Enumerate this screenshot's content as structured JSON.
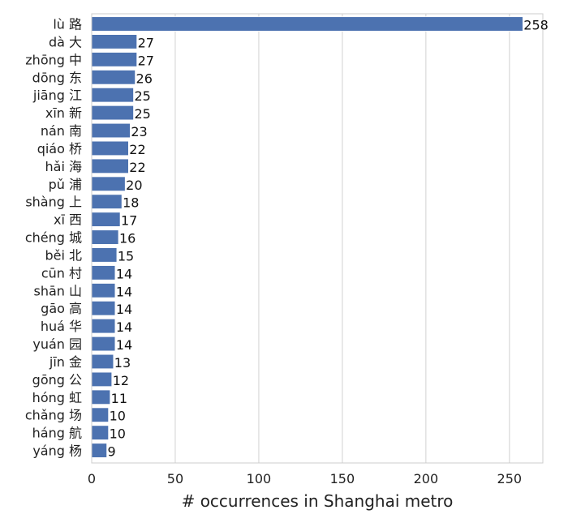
{
  "chart_data": {
    "type": "bar",
    "orientation": "horizontal",
    "categories": [
      "lù 路",
      "dà 大",
      "zhōng 中",
      "dōng 东",
      "jiāng 江",
      "xīn 新",
      "nán 南",
      "qiáo 桥",
      "hǎi 海",
      "pǔ 浦",
      "shàng 上",
      "xī 西",
      "chéng 城",
      "běi 北",
      "cūn 村",
      "shān 山",
      "gāo 高",
      "huá 华",
      "yuán 园",
      "jīn 金",
      "gōng 公",
      "hóng 虹",
      "chǎng 场",
      "háng 航",
      "yáng 杨"
    ],
    "values": [
      258,
      27,
      27,
      26,
      25,
      25,
      23,
      22,
      22,
      20,
      18,
      17,
      16,
      15,
      14,
      14,
      14,
      14,
      14,
      13,
      12,
      11,
      10,
      10,
      9
    ],
    "value_labels": [
      "258",
      "27",
      "27",
      "26",
      "25",
      "25",
      "23",
      "22",
      "22",
      "20",
      "18",
      "17",
      "16",
      "15",
      "14",
      "14",
      "14",
      "14",
      "14",
      "13",
      "12",
      "11",
      "10",
      "10",
      "9"
    ],
    "xlabel": "# occurrences in Shanghai metro",
    "ylabel": "",
    "title": "",
    "xlim": [
      0,
      270
    ],
    "xticks": [
      0,
      50,
      100,
      150,
      200,
      250
    ],
    "xtick_labels": [
      "0",
      "50",
      "100",
      "150",
      "200",
      "250"
    ],
    "grid": "vertical",
    "bar_color": "#4c72b0",
    "grid_color": "#d9d9d9",
    "frame_color": "#cccccc"
  }
}
